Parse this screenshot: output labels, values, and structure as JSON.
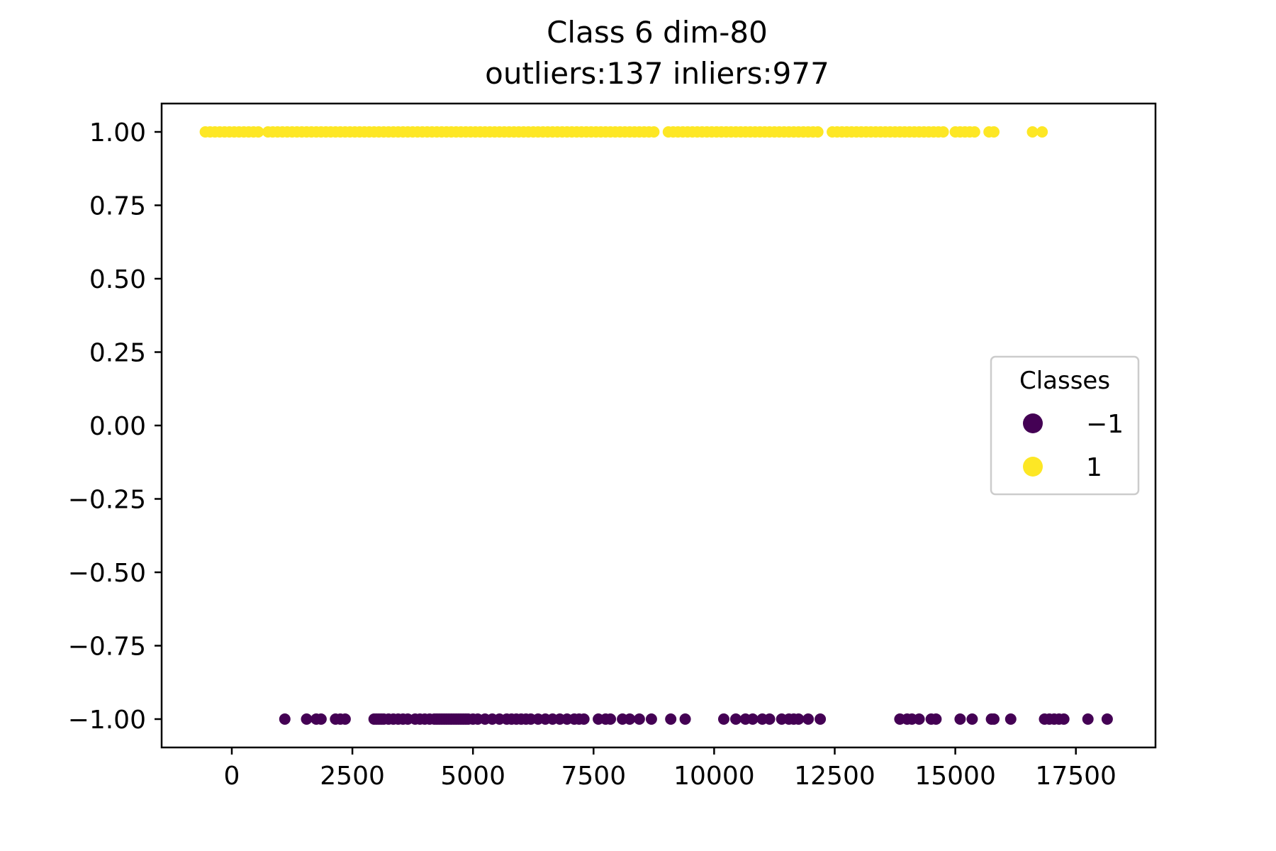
{
  "chart_data": {
    "type": "scatter",
    "title": "Class 6 dim-80",
    "subtitle": "outliers:137  inliers:977",
    "xlabel": "",
    "ylabel": "",
    "xlim": [
      -1500,
      19000
    ],
    "ylim": [
      -1.1,
      1.1
    ],
    "x_ticks": [
      0,
      2500,
      5000,
      7500,
      10000,
      12500,
      15000,
      17500
    ],
    "x_tick_labels": [
      "0",
      "2500",
      "5000",
      "7500",
      "10000",
      "12500",
      "15000",
      "17500"
    ],
    "y_ticks": [
      1.0,
      0.75,
      0.5,
      0.25,
      0.0,
      -0.25,
      -0.5,
      -0.75,
      -1.0
    ],
    "y_tick_labels": [
      "1.00",
      "0.75",
      "0.50",
      "0.25",
      "0.00",
      "−0.25",
      "−0.50",
      "−0.75",
      "−1.00"
    ],
    "grid": false,
    "legend": {
      "title": "Classes",
      "placement": "center-right",
      "entries": [
        {
          "label": "−1",
          "color": "#440154"
        },
        {
          "label": "1",
          "color": "#fde725"
        }
      ]
    },
    "series": [
      {
        "label": "−1",
        "color": "#440154",
        "y": -1,
        "x": [
          1100,
          1550,
          1750,
          1850,
          2150,
          2250,
          2350,
          2950,
          3000,
          3050,
          3100,
          3150,
          3250,
          3350,
          3450,
          3550,
          3650,
          3800,
          3900,
          4000,
          4100,
          4200,
          4250,
          4300,
          4350,
          4400,
          4450,
          4500,
          4550,
          4600,
          4650,
          4700,
          4750,
          4800,
          4850,
          4900,
          5000,
          5100,
          5250,
          5400,
          5550,
          5700,
          5800,
          5900,
          6000,
          6100,
          6200,
          6350,
          6500,
          6650,
          6800,
          6950,
          7100,
          7200,
          7300,
          7600,
          7750,
          7850,
          8100,
          8250,
          8450,
          8700,
          9100,
          9400,
          10200,
          10450,
          10650,
          10800,
          11000,
          11150,
          11400,
          11550,
          11650,
          11750,
          11950,
          12200,
          13850,
          14000,
          14100,
          14250,
          14500,
          14600,
          15100,
          15350,
          15750,
          15800,
          16150,
          16850,
          16950,
          17050,
          17150,
          17250,
          17750,
          18150
        ]
      },
      {
        "label": "1",
        "color": "#fde725",
        "y": 1,
        "x": [
          -550,
          -450,
          -350,
          -250,
          -150,
          -50,
          50,
          150,
          250,
          350,
          450,
          550,
          750,
          850,
          950,
          1050,
          1150,
          1250,
          1350,
          1450,
          1550,
          1650,
          1750,
          1850,
          1950,
          2050,
          2150,
          2250,
          2350,
          2450,
          2550,
          2650,
          2750,
          2850,
          2950,
          3050,
          3150,
          3250,
          3350,
          3450,
          3550,
          3650,
          3750,
          3850,
          3950,
          4050,
          4150,
          4250,
          4350,
          4450,
          4550,
          4650,
          4750,
          4850,
          4950,
          5050,
          5150,
          5250,
          5350,
          5450,
          5550,
          5650,
          5750,
          5850,
          5950,
          6050,
          6150,
          6250,
          6350,
          6450,
          6550,
          6650,
          6750,
          6850,
          6950,
          7050,
          7150,
          7250,
          7350,
          7450,
          7550,
          7650,
          7750,
          7850,
          7950,
          8050,
          8150,
          8250,
          8350,
          8450,
          8550,
          8650,
          8750,
          9050,
          9150,
          9250,
          9350,
          9450,
          9550,
          9650,
          9750,
          9850,
          9950,
          10050,
          10150,
          10250,
          10350,
          10450,
          10550,
          10650,
          10750,
          10850,
          10950,
          11050,
          11150,
          11250,
          11350,
          11450,
          11550,
          11650,
          11750,
          11850,
          11950,
          12050,
          12150,
          12450,
          12550,
          12650,
          12750,
          12850,
          12950,
          13050,
          13150,
          13250,
          13350,
          13450,
          13550,
          13650,
          13750,
          13850,
          13950,
          14050,
          14150,
          14250,
          14350,
          14450,
          14550,
          14650,
          14750,
          15000,
          15100,
          15200,
          15300,
          15400,
          15700,
          15800,
          16600,
          16800
        ]
      }
    ]
  }
}
